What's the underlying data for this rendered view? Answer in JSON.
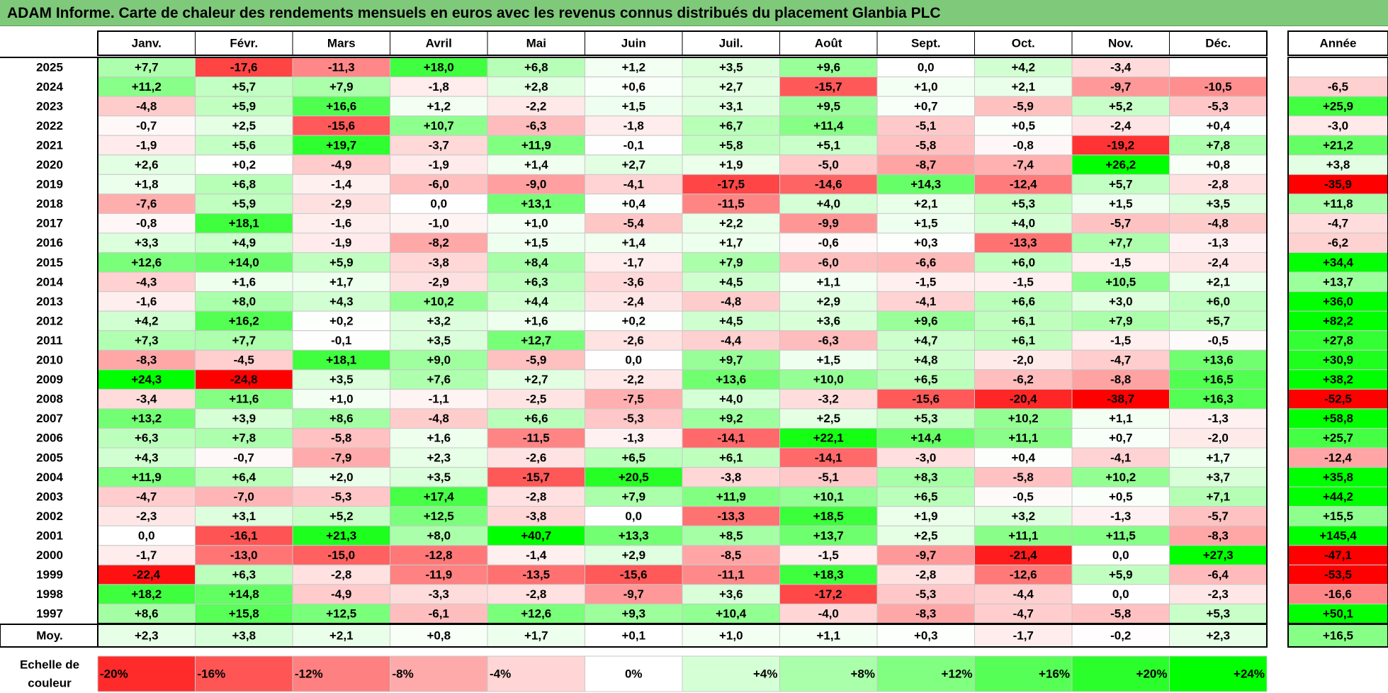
{
  "title": "ADAM Informe. Carte de chaleur des rendements mensuels en euros avec les revenus connus distribués du placement Glanbia PLC",
  "chart_data": {
    "type": "heatmap",
    "columns": [
      "Janv.",
      "Févr.",
      "Mars",
      "Avril",
      "Mai",
      "Juin",
      "Juil.",
      "Août",
      "Sept.",
      "Oct.",
      "Nov.",
      "Déc."
    ],
    "year_header": "Année",
    "rows": [
      {
        "year": "2025",
        "values": [
          "+7,7",
          "-17,6",
          "-11,3",
          "+18,0",
          "+6,8",
          "+1,2",
          "+3,5",
          "+9,6",
          "0,0",
          "+4,2",
          "-3,4",
          ""
        ],
        "annual": ""
      },
      {
        "year": "2024",
        "values": [
          "+11,2",
          "+5,7",
          "+7,9",
          "-1,8",
          "+2,8",
          "+0,6",
          "+2,7",
          "-15,7",
          "+1,0",
          "+2,1",
          "-9,7",
          "-10,5"
        ],
        "annual": "-6,5"
      },
      {
        "year": "2023",
        "values": [
          "-4,8",
          "+5,9",
          "+16,6",
          "+1,2",
          "-2,2",
          "+1,5",
          "+3,1",
          "+9,5",
          "+0,7",
          "-5,9",
          "+5,2",
          "-5,3"
        ],
        "annual": "+25,9"
      },
      {
        "year": "2022",
        "values": [
          "-0,7",
          "+2,5",
          "-15,6",
          "+10,7",
          "-6,3",
          "-1,8",
          "+6,7",
          "+11,4",
          "-5,1",
          "+0,5",
          "-2,4",
          "+0,4"
        ],
        "annual": "-3,0"
      },
      {
        "year": "2021",
        "values": [
          "-1,9",
          "+5,6",
          "+19,7",
          "-3,7",
          "+11,9",
          "-0,1",
          "+5,8",
          "+5,1",
          "-5,8",
          "-0,8",
          "-19,2",
          "+7,8"
        ],
        "annual": "+21,2"
      },
      {
        "year": "2020",
        "values": [
          "+2,6",
          "+0,2",
          "-4,9",
          "-1,9",
          "+1,4",
          "+2,7",
          "+1,9",
          "-5,0",
          "-8,7",
          "-7,4",
          "+26,2",
          "+0,8"
        ],
        "annual": "+3,8"
      },
      {
        "year": "2019",
        "values": [
          "+1,8",
          "+6,8",
          "-1,4",
          "-6,0",
          "-9,0",
          "-4,1",
          "-17,5",
          "-14,6",
          "+14,3",
          "-12,4",
          "+5,7",
          "-2,8"
        ],
        "annual": "-35,9"
      },
      {
        "year": "2018",
        "values": [
          "-7,6",
          "+5,9",
          "-2,9",
          "0,0",
          "+13,1",
          "+0,4",
          "-11,5",
          "+4,0",
          "+2,1",
          "+5,3",
          "+1,5",
          "+3,5"
        ],
        "annual": "+11,8"
      },
      {
        "year": "2017",
        "values": [
          "-0,8",
          "+18,1",
          "-1,6",
          "-1,0",
          "+1,0",
          "-5,4",
          "+2,2",
          "-9,9",
          "+1,5",
          "+4,0",
          "-5,7",
          "-4,8"
        ],
        "annual": "-4,7"
      },
      {
        "year": "2016",
        "values": [
          "+3,3",
          "+4,9",
          "-1,9",
          "-8,2",
          "+1,5",
          "+1,4",
          "+1,7",
          "-0,6",
          "+0,3",
          "-13,3",
          "+7,7",
          "-1,3"
        ],
        "annual": "-6,2"
      },
      {
        "year": "2015",
        "values": [
          "+12,6",
          "+14,0",
          "+5,9",
          "-3,8",
          "+8,4",
          "-1,7",
          "+7,9",
          "-6,0",
          "-6,6",
          "+6,0",
          "-1,5",
          "-2,4"
        ],
        "annual": "+34,4"
      },
      {
        "year": "2014",
        "values": [
          "-4,3",
          "+1,6",
          "+1,7",
          "-2,9",
          "+6,3",
          "-3,6",
          "+4,5",
          "+1,1",
          "-1,5",
          "-1,5",
          "+10,5",
          "+2,1"
        ],
        "annual": "+13,7"
      },
      {
        "year": "2013",
        "values": [
          "-1,6",
          "+8,0",
          "+4,3",
          "+10,2",
          "+4,4",
          "-2,4",
          "-4,8",
          "+2,9",
          "-4,1",
          "+6,6",
          "+3,0",
          "+6,0"
        ],
        "annual": "+36,0"
      },
      {
        "year": "2012",
        "values": [
          "+4,2",
          "+16,2",
          "+0,2",
          "+3,2",
          "+1,6",
          "+0,2",
          "+4,5",
          "+3,6",
          "+9,6",
          "+6,1",
          "+7,9",
          "+5,7"
        ],
        "annual": "+82,2"
      },
      {
        "year": "2011",
        "values": [
          "+7,3",
          "+7,7",
          "-0,1",
          "+3,5",
          "+12,7",
          "-2,6",
          "-4,4",
          "-6,3",
          "+4,7",
          "+6,1",
          "-1,5",
          "-0,5"
        ],
        "annual": "+27,8"
      },
      {
        "year": "2010",
        "values": [
          "-8,3",
          "-4,5",
          "+18,1",
          "+9,0",
          "-5,9",
          "0,0",
          "+9,7",
          "+1,5",
          "+4,8",
          "-2,0",
          "-4,7",
          "+13,6"
        ],
        "annual": "+30,9"
      },
      {
        "year": "2009",
        "values": [
          "+24,3",
          "-24,8",
          "+3,5",
          "+7,6",
          "+2,7",
          "-2,2",
          "+13,6",
          "+10,0",
          "+6,5",
          "-6,2",
          "-8,8",
          "+16,5"
        ],
        "annual": "+38,2"
      },
      {
        "year": "2008",
        "values": [
          "-3,4",
          "+11,6",
          "+1,0",
          "-1,1",
          "-2,5",
          "-7,5",
          "+4,0",
          "-3,2",
          "-15,6",
          "-20,4",
          "-38,7",
          "+16,3"
        ],
        "annual": "-52,5"
      },
      {
        "year": "2007",
        "values": [
          "+13,2",
          "+3,9",
          "+8,6",
          "-4,8",
          "+6,6",
          "-5,3",
          "+9,2",
          "+2,5",
          "+5,3",
          "+10,2",
          "+1,1",
          "-1,3"
        ],
        "annual": "+58,8"
      },
      {
        "year": "2006",
        "values": [
          "+6,3",
          "+7,8",
          "-5,8",
          "+1,6",
          "-11,5",
          "-1,3",
          "-14,1",
          "+22,1",
          "+14,4",
          "+11,1",
          "+0,7",
          "-2,0"
        ],
        "annual": "+25,7"
      },
      {
        "year": "2005",
        "values": [
          "+4,3",
          "-0,7",
          "-7,9",
          "+2,3",
          "-2,6",
          "+6,5",
          "+6,1",
          "-14,1",
          "-3,0",
          "+0,4",
          "-4,1",
          "+1,7"
        ],
        "annual": "-12,4"
      },
      {
        "year": "2004",
        "values": [
          "+11,9",
          "+6,4",
          "+2,0",
          "+3,5",
          "-15,7",
          "+20,5",
          "-3,8",
          "-5,1",
          "+8,3",
          "-5,8",
          "+10,2",
          "+3,7"
        ],
        "annual": "+35,8"
      },
      {
        "year": "2003",
        "values": [
          "-4,7",
          "-7,0",
          "-5,3",
          "+17,4",
          "-2,8",
          "+7,9",
          "+11,9",
          "+10,1",
          "+6,5",
          "-0,5",
          "+0,5",
          "+7,1"
        ],
        "annual": "+44,2"
      },
      {
        "year": "2002",
        "values": [
          "-2,3",
          "+3,1",
          "+5,2",
          "+12,5",
          "-3,8",
          "0,0",
          "-13,3",
          "+18,5",
          "+1,9",
          "+3,2",
          "-1,3",
          "-5,7"
        ],
        "annual": "+15,5"
      },
      {
        "year": "2001",
        "values": [
          "0,0",
          "-16,1",
          "+21,3",
          "+8,0",
          "+40,7",
          "+13,3",
          "+8,5",
          "+13,7",
          "+2,5",
          "+11,1",
          "+11,5",
          "-8,3"
        ],
        "annual": "+145,4"
      },
      {
        "year": "2000",
        "values": [
          "-1,7",
          "-13,0",
          "-15,0",
          "-12,8",
          "-1,4",
          "+2,9",
          "-8,5",
          "-1,5",
          "-9,7",
          "-21,4",
          "0,0",
          "+27,3"
        ],
        "annual": "-47,1"
      },
      {
        "year": "1999",
        "values": [
          "-22,4",
          "+6,3",
          "-2,8",
          "-11,9",
          "-13,5",
          "-15,6",
          "-11,1",
          "+18,3",
          "-2,8",
          "-12,6",
          "+5,9",
          "-6,4"
        ],
        "annual": "-53,5"
      },
      {
        "year": "1998",
        "values": [
          "+18,2",
          "+14,8",
          "-4,9",
          "-3,3",
          "-2,8",
          "-9,7",
          "+3,6",
          "-17,2",
          "-5,3",
          "-4,4",
          "0,0",
          "-2,3"
        ],
        "annual": "-16,6"
      },
      {
        "year": "1997",
        "values": [
          "+8,6",
          "+15,8",
          "+12,5",
          "-6,1",
          "+12,6",
          "+9,3",
          "+10,4",
          "-4,0",
          "-8,3",
          "-4,7",
          "-5,8",
          "+5,3"
        ],
        "annual": "+50,1"
      }
    ],
    "average": {
      "label": "Moy.",
      "values": [
        "+2,3",
        "+3,8",
        "+2,1",
        "+0,8",
        "+1,7",
        "+0,1",
        "+1,0",
        "+1,1",
        "+0,3",
        "-1,7",
        "-0,2",
        "+2,3"
      ],
      "annual": "+16,5"
    },
    "scale": {
      "label_line1": "Echelle de",
      "label_line2": "couleur",
      "items": [
        {
          "label": "-20%",
          "value": -20
        },
        {
          "label": "-16%",
          "value": -16
        },
        {
          "label": "-12%",
          "value": -12
        },
        {
          "label": "-8%",
          "value": -8
        },
        {
          "label": "-4%",
          "value": -4
        },
        {
          "label": "0%",
          "value": 0
        },
        {
          "label": "+4%",
          "value": 4
        },
        {
          "label": "+8%",
          "value": 8
        },
        {
          "label": "+12%",
          "value": 12
        },
        {
          "label": "+16%",
          "value": 16
        },
        {
          "label": "+20%",
          "value": 20
        },
        {
          "label": "+24%",
          "value": 24
        }
      ]
    },
    "colors": {
      "negative": "#ff0000",
      "positive": "#00ff00",
      "neutral": "#ffffff",
      "title_bar": "#7fc97b"
    }
  }
}
